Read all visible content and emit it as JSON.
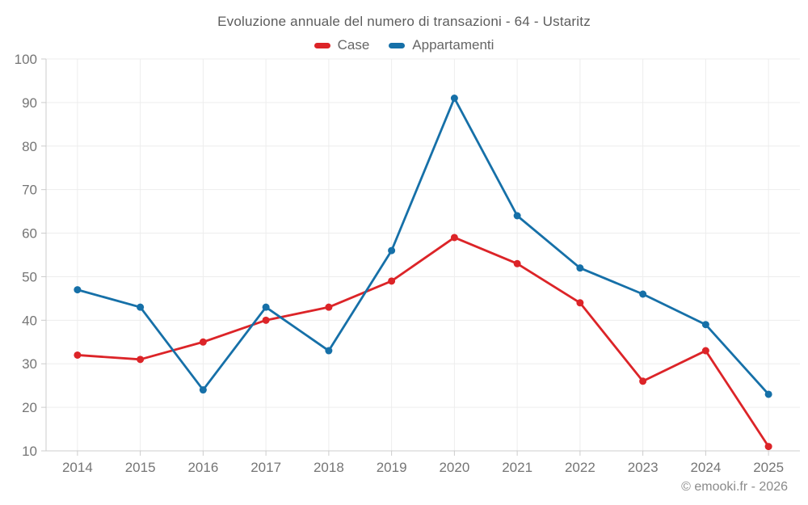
{
  "header": {
    "title": "Evoluzione annuale del numero di transazioni - 64 - Ustaritz"
  },
  "legend": {
    "items": [
      {
        "label": "Case",
        "color": "#dc2428"
      },
      {
        "label": "Appartamenti",
        "color": "#1670a8"
      }
    ]
  },
  "footer": {
    "credit": "© emooki.fr - 2026"
  },
  "chart_data": {
    "type": "line",
    "title": "Evoluzione annuale del numero di transazioni - 64 - Ustaritz",
    "categories": [
      "2014",
      "2015",
      "2016",
      "2017",
      "2018",
      "2019",
      "2020",
      "2021",
      "2022",
      "2023",
      "2024",
      "2025"
    ],
    "series": [
      {
        "name": "Case",
        "color": "#dc2428",
        "values": [
          32,
          31,
          35,
          40,
          43,
          49,
          59,
          53,
          44,
          26,
          33,
          11
        ]
      },
      {
        "name": "Appartamenti",
        "color": "#1670a8",
        "values": [
          47,
          43,
          24,
          43,
          33,
          56,
          91,
          64,
          52,
          46,
          39,
          23
        ]
      }
    ],
    "xlabel": "",
    "ylabel": "",
    "ylim": [
      10,
      100
    ],
    "ytick_step": 10,
    "grid": true,
    "legend_position": "top",
    "marker_radius": 4.5,
    "line_width": 2.8,
    "style": {
      "grid_color": "#ededed",
      "axis_color": "#cccccc",
      "tick_label_color": "#757575",
      "tick_label_size": 17,
      "background": "#ffffff"
    }
  }
}
